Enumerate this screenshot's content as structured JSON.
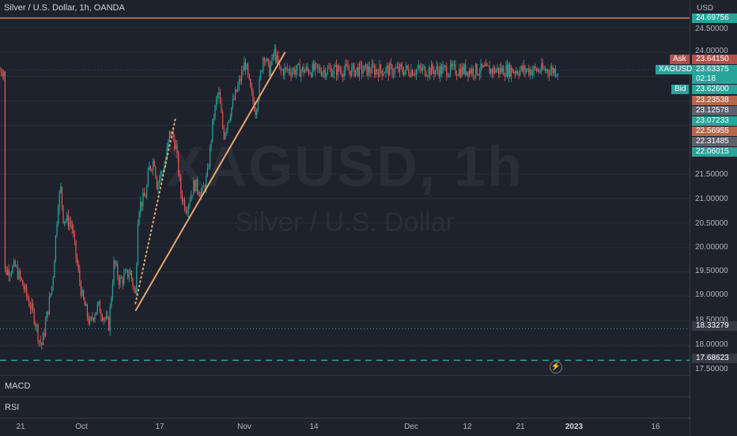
{
  "chart": {
    "title": "Silver / U.S. Dollar, 1h, OANDA",
    "watermark_symbol": "XAGUSD, 1h",
    "watermark_name": "Silver / U.S. Dollar",
    "currency": "USD"
  },
  "price_axis": {
    "ticks": [
      "24.50000",
      "24.00000",
      "21.50000",
      "21.00000",
      "20.50000",
      "20.00000",
      "19.50000",
      "19.00000",
      "18.50000",
      "18.00000",
      "17.50000"
    ]
  },
  "price_labels": {
    "top_line": "24.69756",
    "ask_tag": "Ask",
    "ask": "23.64150",
    "symbol_tag": "XAGUSD",
    "last": "23.63375",
    "countdown": "02:18",
    "bid_tag": "Bid",
    "bid": "23.62600",
    "level_1": "23.23538",
    "level_2": "23.12578",
    "level_3": "23.07233",
    "level_4": "22.56955",
    "level_5": "22.31485",
    "level_6": "22.06015",
    "dotted_level": "18.33279",
    "dashed_level": "17.68623"
  },
  "panels": {
    "macd": "MACD",
    "rsi": "RSI"
  },
  "time_axis": [
    "21",
    "Oct",
    "17",
    "Nov",
    "14",
    "Dec",
    "12",
    "21",
    "2023",
    "16"
  ],
  "colors": {
    "background": "#1e222d",
    "up": "#26a69a",
    "down": "#ef5350",
    "trendline": "#e8a66e",
    "top_line": "#e07b3c",
    "green_tag": "#26a69a",
    "red_tag": "#b2514b",
    "orange_tag": "#b5674a"
  },
  "icons": {
    "bolt": "lightning-bolt-icon"
  },
  "chart_data": {
    "type": "candlestick",
    "symbol": "XAGUSD",
    "ylim": [
      17.4,
      24.75
    ],
    "trendlines": [
      {
        "style": "solid",
        "from": [
          "Nov 3",
          18.7
        ],
        "to": [
          "Dec 29",
          24.0
        ]
      },
      {
        "style": "dotted",
        "from": [
          "Nov 3",
          18.85
        ],
        "to": [
          "Nov 18",
          22.65
        ]
      }
    ],
    "horizontal_levels": [
      {
        "style": "solid",
        "value": 24.69756
      },
      {
        "style": "dotted",
        "value": 18.33279
      },
      {
        "style": "dashed",
        "value": 17.68623
      }
    ],
    "anchors": [
      [
        "Sep 15",
        19.5
      ],
      [
        "Sep 19",
        19.6
      ],
      [
        "Sep 22",
        19.2
      ],
      [
        "Sep 26",
        18.6
      ],
      [
        "Sep 28",
        18.1
      ],
      [
        "Sep 29",
        18.0
      ],
      [
        "Oct 3",
        19.3
      ],
      [
        "Oct 5",
        20.9
      ],
      [
        "Oct 6",
        21.2
      ],
      [
        "Oct 7",
        20.6
      ],
      [
        "Oct 10",
        20.5
      ],
      [
        "Oct 12",
        19.7
      ],
      [
        "Oct 14",
        19.0
      ],
      [
        "Oct 17",
        18.4
      ],
      [
        "Oct 18",
        18.6
      ],
      [
        "Oct 20",
        18.8
      ],
      [
        "Oct 24",
        18.4
      ],
      [
        "Oct 26",
        19.7
      ],
      [
        "Oct 28",
        19.3
      ],
      [
        "Nov 1",
        19.5
      ],
      [
        "Nov 3",
        19.0
      ],
      [
        "Nov 4",
        20.8
      ],
      [
        "Nov 7",
        21.1
      ],
      [
        "Nov 8",
        21.6
      ],
      [
        "Nov 10",
        21.8
      ],
      [
        "Nov 11",
        21.3
      ],
      [
        "Nov 14",
        21.7
      ],
      [
        "Nov 16",
        22.4
      ],
      [
        "Nov 18",
        22.1
      ],
      [
        "Nov 20",
        21.1
      ],
      [
        "Nov 22",
        20.8
      ],
      [
        "Nov 25",
        21.3
      ],
      [
        "Nov 28",
        21.1
      ],
      [
        "Nov 30",
        21.5
      ],
      [
        "Dec 2",
        22.6
      ],
      [
        "Dec 4",
        23.2
      ],
      [
        "Dec 6",
        22.3
      ],
      [
        "Dec 8",
        22.7
      ],
      [
        "Dec 12",
        23.4
      ],
      [
        "Dec 14",
        23.8
      ],
      [
        "Dec 16",
        23.2
      ],
      [
        "Dec 18",
        22.8
      ],
      [
        "Dec 21",
        24.0
      ],
      [
        "Dec 23",
        23.6
      ],
      [
        "Dec 25",
        24.0
      ],
      [
        "Dec 27",
        23.6
      ],
      [
        "Dec 29",
        23.63
      ]
    ]
  }
}
